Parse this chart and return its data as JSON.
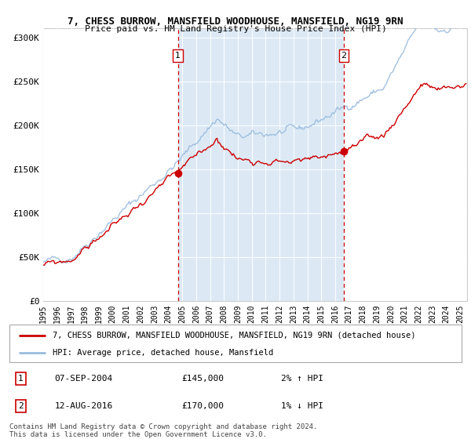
{
  "title1": "7, CHESS BURROW, MANSFIELD WOODHOUSE, MANSFIELD, NG19 9RN",
  "title2": "Price paid vs. HM Land Registry's House Price Index (HPI)",
  "background_color": "#ffffff",
  "plot_bg_color": "#ffffff",
  "shade_color": "#dce9f5",
  "line1_color": "#cc0000",
  "line2_color": "#99bbdd",
  "line1_label": "7, CHESS BURROW, MANSFIELD WOODHOUSE, MANSFIELD, NG19 9RN (detached house)",
  "line2_label": "HPI: Average price, detached house, Mansfield",
  "yticks": [
    0,
    50000,
    100000,
    150000,
    200000,
    250000,
    300000
  ],
  "ytick_labels": [
    "£0",
    "£50K",
    "£100K",
    "£150K",
    "£200K",
    "£250K",
    "£300K"
  ],
  "transaction1": {
    "label": "1",
    "date": "07-SEP-2004",
    "price": 145000,
    "pct": "2%",
    "dir": "↑",
    "x_year": 2004.69
  },
  "transaction2": {
    "label": "2",
    "date": "12-AUG-2016",
    "price": 170000,
    "pct": "1%",
    "dir": "↓",
    "x_year": 2016.62
  },
  "footer": "Contains HM Land Registry data © Crown copyright and database right 2024.\nThis data is licensed under the Open Government Licence v3.0.",
  "xmin": 1995.0,
  "xmax": 2025.5,
  "ymin": 0,
  "ymax": 310000
}
